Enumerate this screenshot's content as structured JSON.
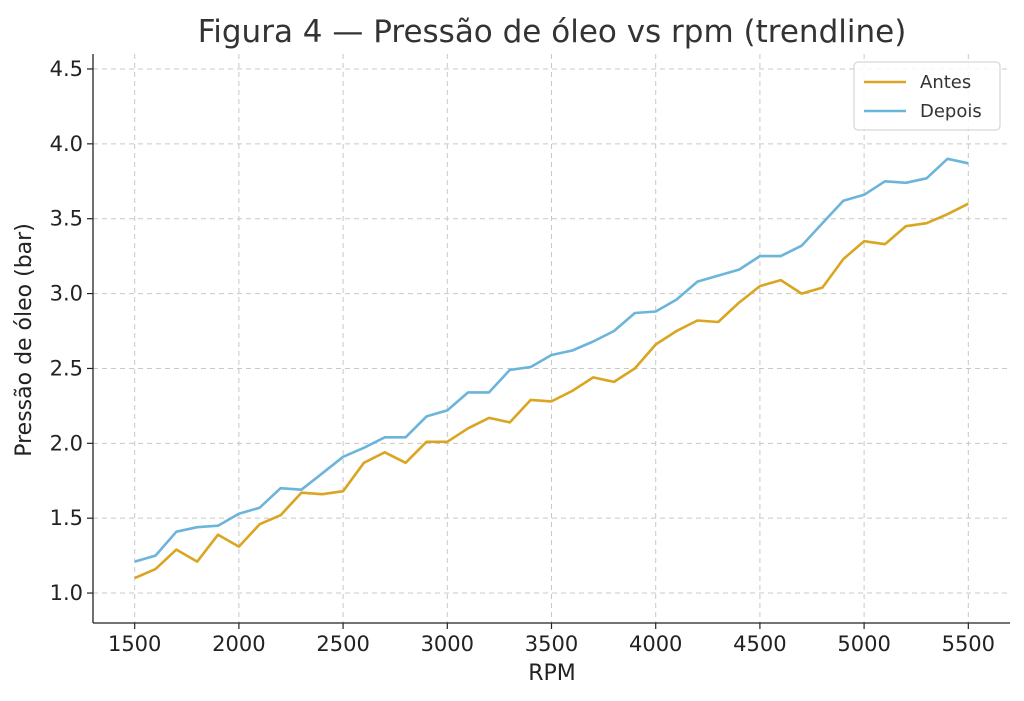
{
  "chart_data": {
    "type": "line",
    "title": "Figura 4 — Pressão de óleo vs rpm (trendline)",
    "xlabel": "RPM",
    "ylabel": "Pressão de óleo (bar)",
    "xlim": [
      1300,
      5700
    ],
    "ylim": [
      0.8,
      4.6
    ],
    "xticks": [
      1500,
      2000,
      2500,
      3000,
      3500,
      4000,
      4500,
      5000,
      5500
    ],
    "yticks": [
      1.0,
      1.5,
      2.0,
      2.5,
      3.0,
      3.5,
      4.0,
      4.5
    ],
    "grid": true,
    "legend_position": "top-right",
    "x": [
      1500,
      1600,
      1700,
      1800,
      1900,
      2000,
      2100,
      2200,
      2300,
      2400,
      2500,
      2600,
      2700,
      2800,
      2900,
      3000,
      3100,
      3200,
      3300,
      3400,
      3500,
      3600,
      3700,
      3800,
      3900,
      4000,
      4100,
      4200,
      4300,
      4400,
      4500,
      4600,
      4700,
      4800,
      4900,
      5000,
      5100,
      5200,
      5300,
      5400,
      5500
    ],
    "series": [
      {
        "name": "Antes",
        "color": "#DAA520",
        "values": [
          1.1,
          1.16,
          1.29,
          1.21,
          1.39,
          1.31,
          1.46,
          1.52,
          1.67,
          1.66,
          1.68,
          1.87,
          1.94,
          1.87,
          2.01,
          2.01,
          2.1,
          2.17,
          2.14,
          2.29,
          2.28,
          2.35,
          2.44,
          2.41,
          2.5,
          2.66,
          2.75,
          2.82,
          2.81,
          2.94,
          3.05,
          3.09,
          3.0,
          3.04,
          3.23,
          3.35,
          3.33,
          3.45,
          3.47,
          3.53,
          3.6
        ]
      },
      {
        "name": "Depois",
        "color": "#6BB5DB",
        "values": [
          1.21,
          1.25,
          1.41,
          1.44,
          1.45,
          1.53,
          1.57,
          1.7,
          1.69,
          1.8,
          1.91,
          1.97,
          2.04,
          2.04,
          2.18,
          2.22,
          2.34,
          2.34,
          2.49,
          2.51,
          2.59,
          2.62,
          2.68,
          2.75,
          2.87,
          2.88,
          2.96,
          3.08,
          3.12,
          3.16,
          3.25,
          3.25,
          3.32,
          3.47,
          3.62,
          3.66,
          3.75,
          3.74,
          3.77,
          3.9,
          3.87
        ]
      }
    ]
  }
}
